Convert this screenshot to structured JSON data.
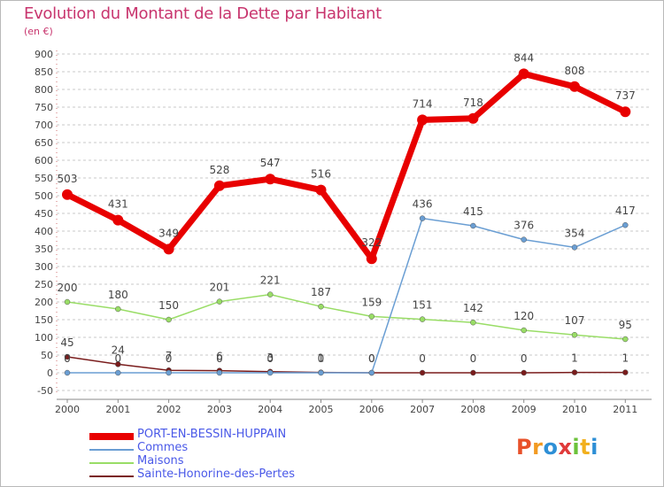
{
  "title": "Evolution du Montant de la Dette par Habitant",
  "unit": "(en €)",
  "logo": {
    "text": "Proxiti",
    "colors": [
      "#e8512a",
      "#f29a22",
      "#2e8fd6",
      "#e03a3a",
      "#6cc23a",
      "#f2b01e",
      "#2e8fd6"
    ]
  },
  "chart_data": {
    "type": "line",
    "x": [
      "2000",
      "2001",
      "2002",
      "2003",
      "2004",
      "2005",
      "2006",
      "2007",
      "2008",
      "2009",
      "2010",
      "2011"
    ],
    "ylim": [
      -50,
      900
    ],
    "yticks": [
      -50,
      0,
      50,
      100,
      150,
      200,
      250,
      300,
      350,
      400,
      450,
      500,
      550,
      600,
      650,
      700,
      750,
      800,
      850,
      900
    ],
    "grid": "horizontal dashed",
    "legend_position": "bottom-left",
    "series": [
      {
        "name": "PORT-EN-BESSIN-HUPPAIN",
        "color": "#e80000",
        "width": 7,
        "values": [
          503,
          431,
          349,
          528,
          547,
          516,
          322,
          714,
          718,
          844,
          808,
          737
        ],
        "labels": [
          "503",
          "431",
          "349",
          "528",
          "547",
          "516",
          "322",
          "714",
          "718",
          "844",
          "808",
          "737"
        ]
      },
      {
        "name": "Commes",
        "color": "#6a9ed3",
        "width": 1.5,
        "values": [
          0,
          0,
          0,
          0,
          0,
          0,
          0,
          436,
          415,
          376,
          354,
          417
        ],
        "labels": [
          "0",
          "0",
          "0",
          "0",
          "0",
          "0",
          "0",
          "436",
          "415",
          "376",
          "354",
          "417"
        ]
      },
      {
        "name": "Maisons",
        "color": "#99dd66",
        "width": 1.5,
        "values": [
          200,
          180,
          150,
          201,
          221,
          187,
          159,
          151,
          142,
          120,
          107,
          95
        ],
        "labels": [
          "200",
          "180",
          "150",
          "201",
          "221",
          "187",
          "159",
          "151",
          "142",
          "120",
          "107",
          "95"
        ]
      },
      {
        "name": "Sainte-Honorine-des-Pertes",
        "color": "#7a1c1c",
        "width": 1.5,
        "values": [
          45,
          24,
          7,
          6,
          3,
          1,
          0,
          0,
          0,
          0,
          1,
          1
        ],
        "labels": [
          "45",
          "24",
          "7",
          "6",
          "3",
          "1",
          "0",
          "0",
          "0",
          "0",
          "1",
          "1"
        ]
      }
    ]
  }
}
